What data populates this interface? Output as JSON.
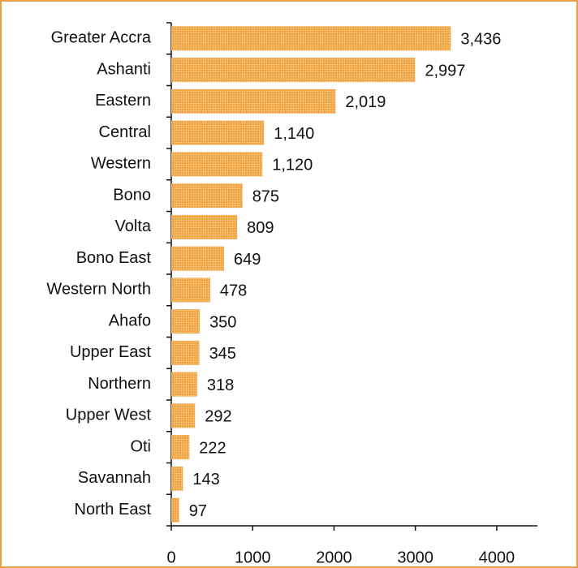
{
  "chart_data": {
    "type": "bar",
    "orientation": "horizontal",
    "categories": [
      "Greater Accra",
      "Ashanti",
      "Eastern",
      "Central",
      "Western",
      "Bono",
      "Volta",
      "Bono East",
      "Western North",
      "Ahafo",
      "Upper East",
      "Northern",
      "Upper West",
      "Oti",
      "Savannah",
      "North East"
    ],
    "values": [
      3436,
      2997,
      2019,
      1140,
      1120,
      875,
      809,
      649,
      478,
      350,
      345,
      318,
      292,
      222,
      143,
      97
    ],
    "value_labels": [
      "3,436",
      "2,997",
      "2,019",
      "1,140",
      "1,120",
      "875",
      "809",
      "649",
      "478",
      "350",
      "345",
      "318",
      "292",
      "222",
      "143",
      "97"
    ],
    "color": "#f0a848",
    "xlim": [
      0,
      4500
    ],
    "xticks": [
      0,
      1000,
      2000,
      3000,
      4000
    ],
    "grid": false
  }
}
